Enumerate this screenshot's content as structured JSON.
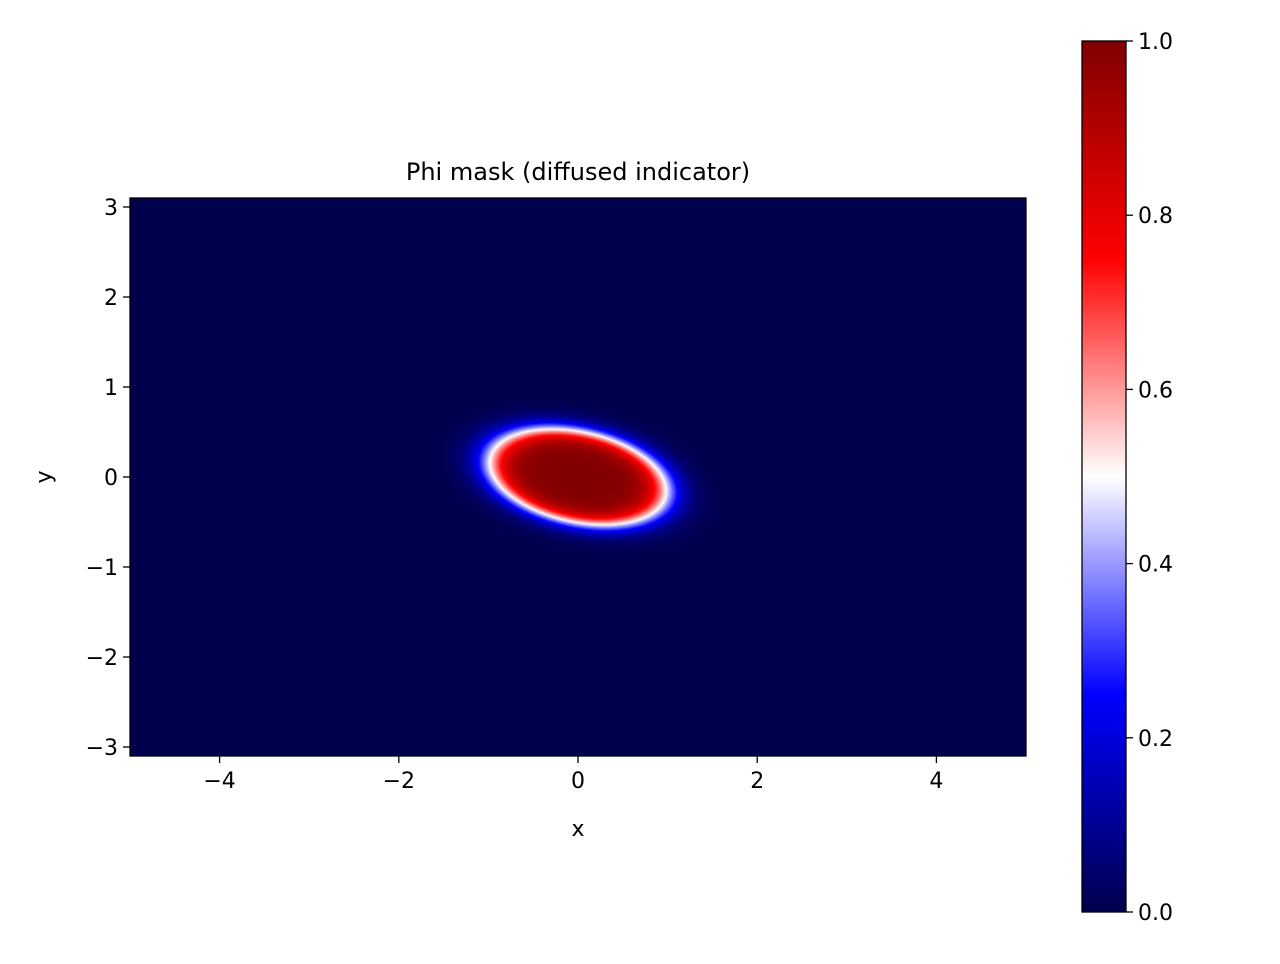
{
  "chart_data": {
    "type": "heatmap",
    "title": "Phi mask (diffused indicator)",
    "xlabel": "x",
    "ylabel": "y",
    "xlim": [
      -5,
      5
    ],
    "ylim": [
      -3.1,
      3.1
    ],
    "x_ticks": [
      -4,
      -2,
      0,
      2,
      4
    ],
    "x_tick_labels": [
      "−4",
      "−2",
      "0",
      "2",
      "4"
    ],
    "y_ticks": [
      -3,
      -2,
      -1,
      0,
      1,
      2,
      3
    ],
    "y_tick_labels": [
      "−3",
      "−2",
      "−1",
      "0",
      "1",
      "2",
      "3"
    ],
    "field": {
      "shape": "rotated-ellipse",
      "center": [
        0,
        0
      ],
      "semi_axis_x": 1.0,
      "semi_axis_y": 0.5,
      "rotation_deg": -12,
      "edge_width": 0.12,
      "inside_value": 1.0,
      "outside_value": 0.0
    },
    "colorbar": {
      "colormap": "seismic",
      "range": [
        0,
        1
      ],
      "ticks": [
        0,
        0.2,
        0.4,
        0.6,
        0.8,
        1.0
      ],
      "tick_labels": [
        "0.0",
        "0.2",
        "0.4",
        "0.6",
        "0.8",
        "1.0"
      ],
      "color_stops": [
        [
          0.0,
          "#00004c"
        ],
        [
          0.25,
          "#0000ff"
        ],
        [
          0.5,
          "#ffffff"
        ],
        [
          0.75,
          "#ff0000"
        ],
        [
          1.0,
          "#800000"
        ]
      ]
    },
    "grid": false,
    "legend": "none"
  }
}
